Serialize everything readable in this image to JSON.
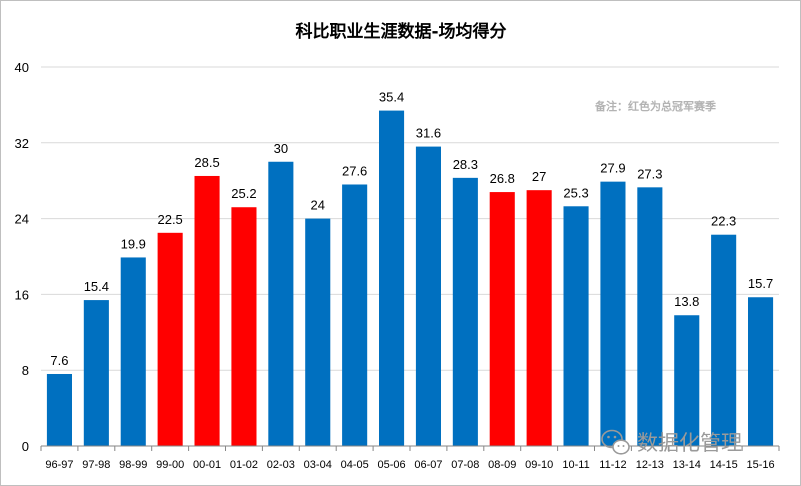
{
  "chart_data": {
    "type": "bar",
    "title": "科比职业生涯数据-场均得分",
    "annotation": "备注：红色为总冠军赛季",
    "xlabel": "",
    "ylabel": "",
    "ylim": [
      0,
      40
    ],
    "yticks": [
      0,
      8,
      16,
      24,
      32,
      40
    ],
    "grid": true,
    "legend": "none",
    "categories": [
      "96-97",
      "97-98",
      "98-99",
      "99-00",
      "00-01",
      "01-02",
      "02-03",
      "03-04",
      "04-05",
      "05-06",
      "06-07",
      "07-08",
      "08-09",
      "09-10",
      "10-11",
      "11-12",
      "12-13",
      "13-14",
      "14-15",
      "15-16"
    ],
    "values": [
      7.6,
      15.4,
      19.9,
      22.5,
      28.5,
      25.2,
      30,
      24,
      27.6,
      35.4,
      31.6,
      28.3,
      26.8,
      27,
      25.3,
      27.9,
      27.3,
      13.8,
      22.3,
      15.7
    ],
    "value_labels": [
      "7.6",
      "15.4",
      "19.9",
      "22.5",
      "28.5",
      "25.2",
      "30",
      "24",
      "27.6",
      "35.4",
      "31.6",
      "28.3",
      "26.8",
      "27",
      "25.3",
      "27.9",
      "27.3",
      "13.8",
      "22.3",
      "15.7"
    ],
    "champion_seasons": [
      "99-00",
      "00-01",
      "01-02",
      "08-09",
      "09-10"
    ],
    "colors": {
      "normal": "#0070c0",
      "champion": "#ff0000",
      "grid": "#d9d9d9",
      "axis": "#868686"
    }
  },
  "watermark": {
    "text": "数据化管理",
    "icon": "wechat-icon"
  }
}
